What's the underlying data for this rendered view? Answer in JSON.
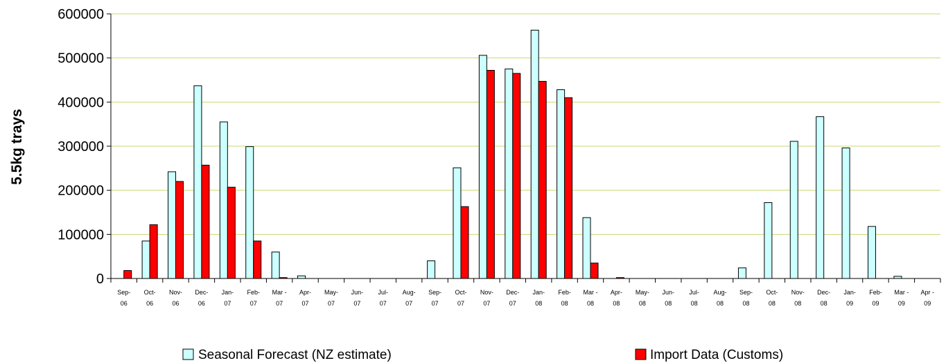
{
  "chart_data": {
    "type": "bar",
    "title": "",
    "xlabel": "",
    "ylabel": "5.5kg trays",
    "ylim": [
      0,
      600000
    ],
    "yticks": [
      0,
      100000,
      200000,
      300000,
      400000,
      500000,
      600000
    ],
    "grid": "horizontal",
    "legend_position": "bottom",
    "categories": [
      [
        "Sep-",
        "06"
      ],
      [
        "Oct-",
        "06"
      ],
      [
        "Nov-",
        "06"
      ],
      [
        "Dec-",
        "06"
      ],
      [
        "Jan-",
        "07"
      ],
      [
        "Feb-",
        "07"
      ],
      [
        "Mar -",
        "07"
      ],
      [
        "Apr-",
        "07"
      ],
      [
        "May-",
        "07"
      ],
      [
        "Jun-",
        "07"
      ],
      [
        "Jul-",
        "07"
      ],
      [
        "Aug-",
        "07"
      ],
      [
        "Sep-",
        "07"
      ],
      [
        "Oct-",
        "07"
      ],
      [
        "Nov-",
        "07"
      ],
      [
        "Dec-",
        "07"
      ],
      [
        "Jan-",
        "08"
      ],
      [
        "Feb-",
        "08"
      ],
      [
        "Mar -",
        "08"
      ],
      [
        "Apr-",
        "08"
      ],
      [
        "May-",
        "08"
      ],
      [
        "Jun-",
        "08"
      ],
      [
        "Jul-",
        "08"
      ],
      [
        "Aug-",
        "08"
      ],
      [
        "Sep-",
        "08"
      ],
      [
        "Oct-",
        "08"
      ],
      [
        "Nov-",
        "08"
      ],
      [
        "Dec-",
        "08"
      ],
      [
        "Jan-",
        "09"
      ],
      [
        "Feb-",
        "09"
      ],
      [
        "Mar -",
        "09"
      ],
      [
        "Apr -",
        "09"
      ]
    ],
    "series": [
      {
        "name": "Seasonal Forecast (NZ estimate)",
        "color": "#ccffff",
        "values": [
          0,
          85000,
          242000,
          437000,
          355000,
          299000,
          60000,
          6000,
          0,
          0,
          0,
          0,
          40000,
          251000,
          506000,
          475000,
          563000,
          428000,
          138000,
          0,
          0,
          0,
          0,
          0,
          24000,
          172000,
          311000,
          367000,
          296000,
          118000,
          5000,
          0
        ]
      },
      {
        "name": "Import Data (Customs)",
        "color": "#ff0000",
        "values": [
          18000,
          122000,
          220000,
          257000,
          207000,
          85000,
          2000,
          0,
          0,
          0,
          0,
          0,
          0,
          163000,
          472000,
          465000,
          447000,
          410000,
          35000,
          2000,
          0,
          0,
          0,
          0,
          0,
          0,
          0,
          0,
          0,
          0,
          0,
          0
        ]
      }
    ]
  }
}
